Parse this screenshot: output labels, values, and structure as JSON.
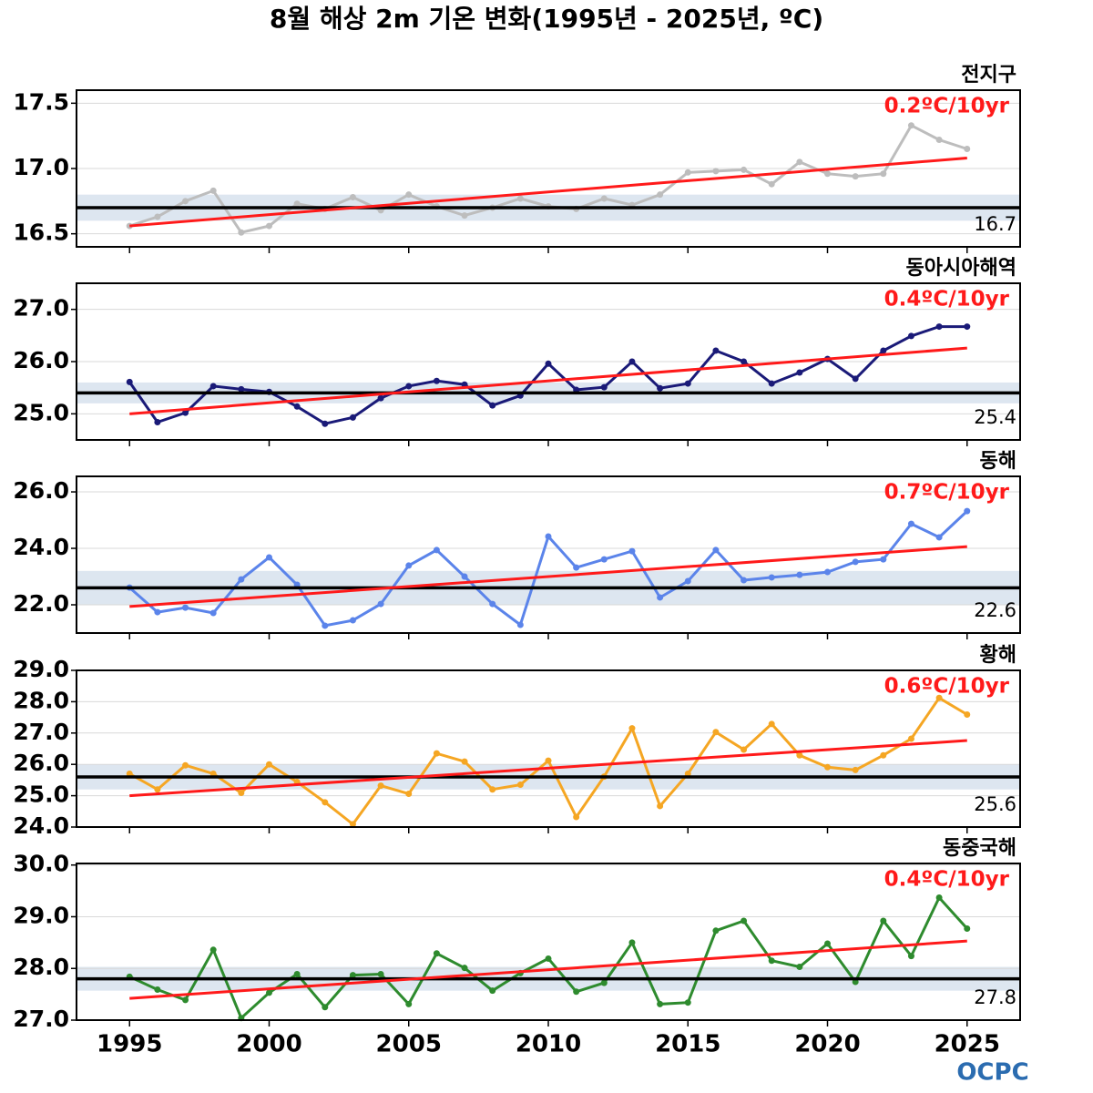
{
  "title": "8월 해상 2m 기온 변화(1995년 - 2025년, ºC)",
  "logo": "OCPC",
  "chart_data": [
    {
      "type": "line",
      "title": "전지구",
      "annotation": "0.2ºC/10yr",
      "x": [
        1995,
        1996,
        1997,
        1998,
        1999,
        2000,
        2001,
        2002,
        2003,
        2004,
        2005,
        2006,
        2007,
        2008,
        2009,
        2010,
        2011,
        2012,
        2013,
        2014,
        2015,
        2016,
        2017,
        2018,
        2019,
        2020,
        2021,
        2022,
        2023,
        2024,
        2025
      ],
      "series": [
        {
          "color": "#bdbdbd",
          "values": [
            16.56,
            16.63,
            16.75,
            16.83,
            16.51,
            16.56,
            16.73,
            16.69,
            16.78,
            16.68,
            16.8,
            16.71,
            16.64,
            16.7,
            16.77,
            16.71,
            16.69,
            16.77,
            16.72,
            16.8,
            16.97,
            16.98,
            16.99,
            16.88,
            17.05,
            16.96,
            16.94,
            16.96,
            17.33,
            17.22,
            17.15
          ]
        }
      ],
      "trend": {
        "x": [
          1995,
          2025
        ],
        "values": [
          16.56,
          17.08
        ],
        "color": "#ff1a1a"
      },
      "baseline": 16.7,
      "band": [
        16.6,
        16.8
      ],
      "xlim": [
        1993.1,
        2026.9
      ],
      "xticks": [
        1995,
        2000,
        2005,
        2010,
        2015,
        2020,
        2025
      ],
      "ylim": [
        16.4,
        17.6
      ],
      "yticks": [
        16.5,
        {
          "value": 17.0,
          "label": "17.0"
        },
        17.5
      ],
      "grid": true
    },
    {
      "type": "line",
      "title": "동아시아해역",
      "annotation": "0.4ºC/10yr",
      "x": [
        1995,
        1996,
        1997,
        1998,
        1999,
        2000,
        2001,
        2002,
        2003,
        2004,
        2005,
        2006,
        2007,
        2008,
        2009,
        2010,
        2011,
        2012,
        2013,
        2014,
        2015,
        2016,
        2017,
        2018,
        2019,
        2020,
        2021,
        2022,
        2023,
        2024,
        2025
      ],
      "series": [
        {
          "color": "#1a1a78",
          "values": [
            25.61,
            24.84,
            25.02,
            25.53,
            25.47,
            25.42,
            25.14,
            24.81,
            24.93,
            25.3,
            25.53,
            25.63,
            25.56,
            25.16,
            25.35,
            25.96,
            25.46,
            25.51,
            26.0,
            25.49,
            25.58,
            26.21,
            26.0,
            25.58,
            25.79,
            26.05,
            25.67,
            26.21,
            26.49,
            26.67,
            26.67
          ]
        }
      ],
      "trend": {
        "x": [
          1995,
          2025
        ],
        "values": [
          25.0,
          26.26
        ],
        "color": "#ff1a1a"
      },
      "baseline": 25.4,
      "band": [
        25.2,
        25.6
      ],
      "xlim": [
        1993.1,
        2026.9
      ],
      "xticks": [
        1995,
        2000,
        2005,
        2010,
        2015,
        2020,
        2025
      ],
      "ylim": [
        24.5,
        27.5
      ],
      "yticks": [
        {
          "value": 25.0,
          "label": "25.0"
        },
        {
          "value": 26.0,
          "label": "26.0"
        },
        {
          "value": 27.0,
          "label": "27.0"
        }
      ],
      "grid": true
    },
    {
      "type": "line",
      "title": "동해",
      "annotation": "0.7ºC/10yr",
      "x": [
        1995,
        1996,
        1997,
        1998,
        1999,
        2000,
        2001,
        2002,
        2003,
        2004,
        2005,
        2006,
        2007,
        2008,
        2009,
        2010,
        2011,
        2012,
        2013,
        2014,
        2015,
        2016,
        2017,
        2018,
        2019,
        2020,
        2021,
        2022,
        2023,
        2024,
        2025
      ],
      "series": [
        {
          "color": "#5b84ea",
          "values": [
            22.61,
            21.74,
            21.9,
            21.71,
            22.9,
            23.68,
            22.71,
            21.26,
            21.45,
            22.03,
            23.39,
            23.94,
            23.0,
            22.03,
            21.29,
            24.42,
            23.32,
            23.61,
            23.9,
            22.26,
            22.84,
            23.94,
            22.87,
            22.97,
            23.06,
            23.16,
            23.52,
            23.61,
            24.87,
            24.39,
            25.32
          ]
        }
      ],
      "trend": {
        "x": [
          1995,
          2025
        ],
        "values": [
          21.94,
          24.06
        ],
        "color": "#ff1a1a"
      },
      "baseline": 22.6,
      "band": [
        22.0,
        23.2
      ],
      "xlim": [
        1993.1,
        2026.9
      ],
      "xticks": [
        1995,
        2000,
        2005,
        2010,
        2015,
        2020,
        2025
      ],
      "ylim": [
        21.0,
        26.55
      ],
      "yticks": [
        {
          "value": 22.0,
          "label": "22.0"
        },
        {
          "value": 24.0,
          "label": "24.0"
        },
        {
          "value": 26.0,
          "label": "26.0"
        }
      ],
      "grid": true
    },
    {
      "type": "line",
      "title": "황해",
      "annotation": "0.6ºC/10yr",
      "x": [
        1995,
        1996,
        1997,
        1998,
        1999,
        2000,
        2001,
        2002,
        2003,
        2004,
        2005,
        2006,
        2007,
        2008,
        2009,
        2010,
        2011,
        2012,
        2013,
        2014,
        2015,
        2016,
        2017,
        2018,
        2019,
        2020,
        2021,
        2022,
        2023,
        2024,
        2025
      ],
      "series": [
        {
          "color": "#f5a623",
          "values": [
            25.7,
            25.2,
            25.97,
            25.7,
            25.09,
            26.0,
            25.44,
            24.79,
            24.09,
            25.32,
            25.06,
            26.35,
            26.09,
            25.2,
            25.35,
            26.12,
            24.32,
            25.61,
            27.15,
            24.67,
            25.7,
            27.03,
            26.47,
            27.29,
            26.29,
            25.91,
            25.82,
            26.29,
            26.82,
            28.12,
            27.59
          ]
        }
      ],
      "trend": {
        "x": [
          1995,
          2025
        ],
        "values": [
          25.0,
          26.76
        ],
        "color": "#ff1a1a"
      },
      "baseline": 25.6,
      "band": [
        25.2,
        26.0
      ],
      "xlim": [
        1993.1,
        2026.9
      ],
      "xticks": [
        1995,
        2000,
        2005,
        2010,
        2015,
        2020,
        2025
      ],
      "ylim": [
        24.0,
        29.0
      ],
      "yticks": [
        {
          "value": 24.0,
          "label": "24.0"
        },
        {
          "value": 25.0,
          "label": "25.0"
        },
        {
          "value": 26.0,
          "label": "26.0"
        },
        {
          "value": 27.0,
          "label": "27.0"
        },
        {
          "value": 28.0,
          "label": "28.0"
        },
        {
          "value": 29.0,
          "label": "29.0"
        }
      ],
      "grid": true
    },
    {
      "type": "line",
      "title": "동중국해",
      "annotation": "0.4ºC/10yr",
      "x": [
        1995,
        1996,
        1997,
        1998,
        1999,
        2000,
        2001,
        2002,
        2003,
        2004,
        2005,
        2006,
        2007,
        2008,
        2009,
        2010,
        2011,
        2012,
        2013,
        2014,
        2015,
        2016,
        2017,
        2018,
        2019,
        2020,
        2021,
        2022,
        2023,
        2024,
        2025
      ],
      "series": [
        {
          "color": "#2e8b2e",
          "values": [
            27.84,
            27.59,
            27.39,
            28.36,
            27.04,
            27.53,
            27.89,
            27.25,
            27.87,
            27.89,
            27.31,
            28.29,
            28.01,
            27.57,
            27.91,
            28.19,
            27.55,
            27.72,
            28.5,
            27.31,
            27.34,
            28.73,
            28.92,
            28.15,
            28.03,
            28.48,
            27.74,
            28.92,
            28.24,
            29.37,
            28.77
          ]
        }
      ],
      "trend": {
        "x": [
          1995,
          2025
        ],
        "values": [
          27.42,
          28.53
        ],
        "color": "#ff1a1a"
      },
      "baseline": 27.8,
      "band": [
        27.57,
        28.03
      ],
      "xlim": [
        1993.1,
        2026.9
      ],
      "xticks": [
        1995,
        2000,
        2005,
        2010,
        2015,
        2020,
        2025
      ],
      "xtick_labels": true,
      "ylim": [
        27.0,
        30.03
      ],
      "yticks": [
        {
          "value": 27.0,
          "label": "27.0"
        },
        {
          "value": 28.0,
          "label": "28.0"
        },
        {
          "value": 29.0,
          "label": "29.0"
        },
        {
          "value": 30.0,
          "label": "30.0"
        }
      ],
      "grid": true
    }
  ]
}
